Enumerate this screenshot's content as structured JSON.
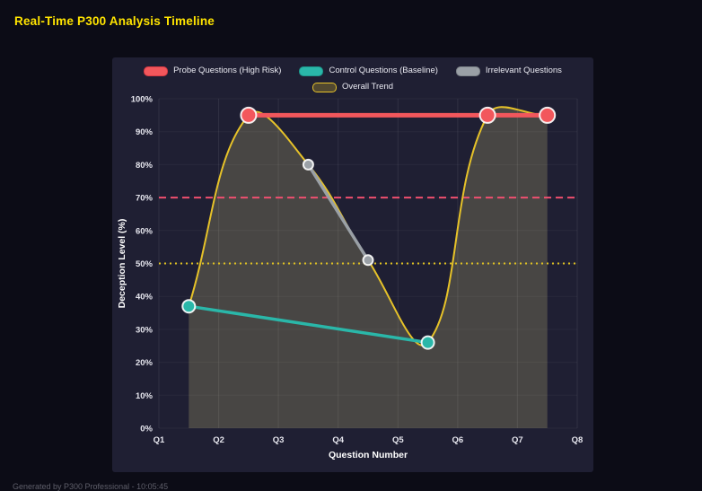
{
  "page": {
    "title": "Real-Time P300 Analysis Timeline",
    "footer": "Generated by P300 Professional - 10:05:45",
    "colors": {
      "page_bg": "#0c0c16",
      "panel_bg": "#1f1f33",
      "title_accent": "#ffe400"
    }
  },
  "chart_data": {
    "type": "line",
    "title": "Real-Time P300 Analysis Timeline",
    "xlabel": "Question Number",
    "ylabel": "Deception Level (%)",
    "xlim": [
      1,
      8
    ],
    "ylim": [
      0,
      100
    ],
    "x_tick_values": [
      1,
      2,
      3,
      4,
      5,
      6,
      7,
      8
    ],
    "x_tick_labels": [
      "Q1",
      "Q2",
      "Q3",
      "Q4",
      "Q5",
      "Q6",
      "Q7",
      "Q8"
    ],
    "y_tick_values": [
      0,
      10,
      20,
      30,
      40,
      50,
      60,
      70,
      80,
      90,
      100
    ],
    "y_tick_labels": [
      "0%",
      "10%",
      "20%",
      "30%",
      "40%",
      "50%",
      "60%",
      "70%",
      "80%",
      "90%",
      "100%"
    ],
    "grid": true,
    "legend_position": "top",
    "series": [
      {
        "name": "Probe Questions (High Risk)",
        "color": "#f2575c",
        "legend_fill": "#f2575c",
        "legend_border": "#d93a44",
        "marker_radius": 8.5,
        "line_width": 5,
        "x": [
          2.5,
          6.5,
          7.5
        ],
        "values": [
          95,
          95,
          95
        ]
      },
      {
        "name": "Control Questions (Baseline)",
        "color": "#2ab7a9",
        "legend_fill": "#2ab7a9",
        "legend_border": "#1d968b",
        "marker_radius": 7,
        "line_width": 3.5,
        "x": [
          1.5,
          5.5
        ],
        "values": [
          37,
          26
        ]
      },
      {
        "name": "Irrelevant Questions",
        "color": "#9aa0a6",
        "legend_fill": "#9aa0a6",
        "legend_border": "#7f858b",
        "marker_radius": 5.5,
        "line_width": 3.5,
        "x": [
          3.5,
          4.5
        ],
        "values": [
          80,
          51
        ]
      }
    ],
    "trend": {
      "name": "Overall Trend",
      "color": "#e6c229",
      "legend_fill": "rgba(230,194,41,0.25)",
      "legend_border": "#e6c229",
      "line_width": 2,
      "fill": "rgba(240,230,140,0.20)",
      "x": [
        1.5,
        2.5,
        3.5,
        4.5,
        5.5,
        6.5,
        7.5
      ],
      "values": [
        37,
        95,
        80,
        51,
        26,
        95,
        95
      ]
    },
    "thresholds": [
      {
        "value": 70,
        "color": "#ef4f6f",
        "dash": "8,5",
        "width": 2
      },
      {
        "value": 50,
        "color": "#dfc122",
        "dash": "2,4",
        "width": 2
      }
    ]
  }
}
